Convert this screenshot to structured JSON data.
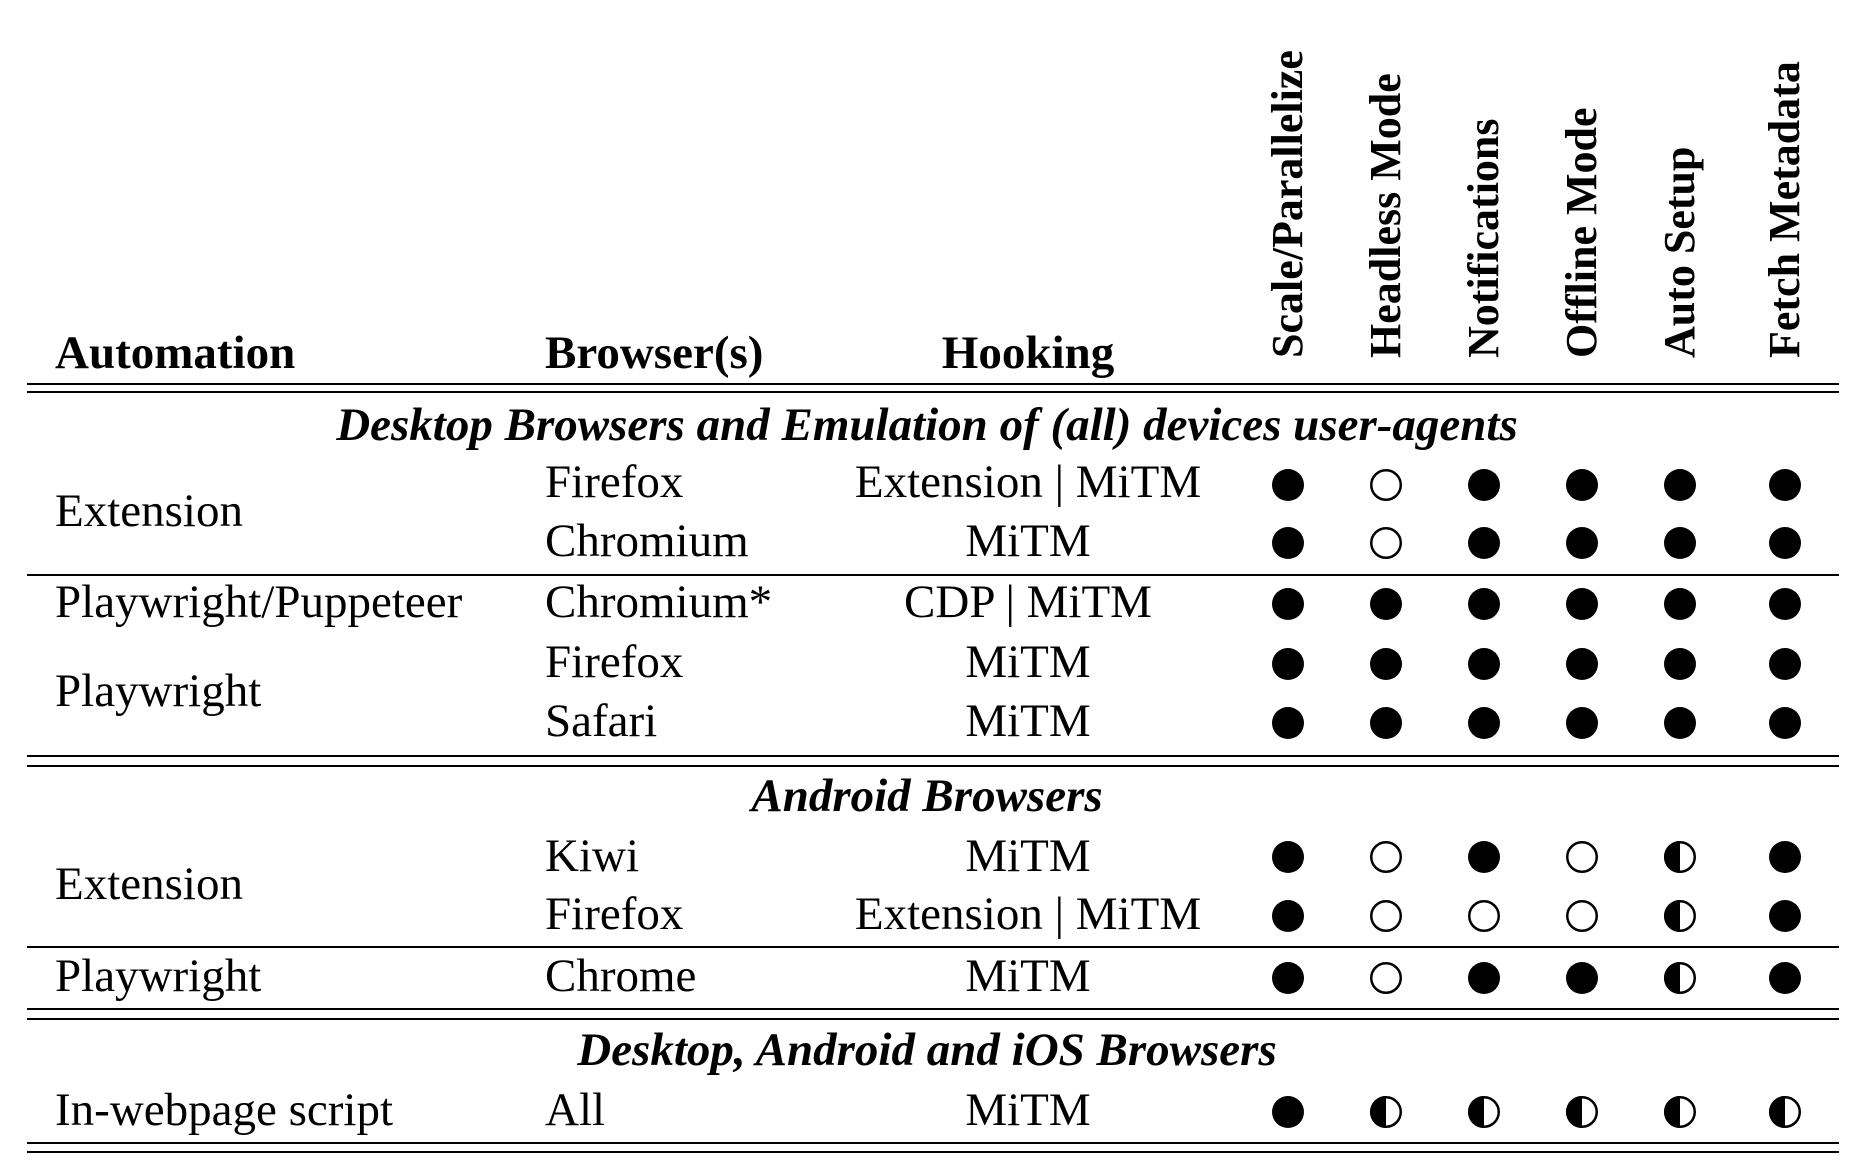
{
  "table": {
    "columns": {
      "automation": "Automation",
      "browsers": "Browser(s)",
      "hooking": "Hooking",
      "features": [
        "Scale/Parallelize",
        "Headless Mode",
        "Notifications",
        "Offline Mode",
        "Auto Setup",
        "Fetch Metadata"
      ]
    },
    "legend_symbols": {
      "full": "●",
      "none": "○",
      "partial": "◐"
    },
    "sections": [
      {
        "title": "Desktop Browsers and Emulation of (all) devices user-agents",
        "groups": [
          {
            "automation": "Extension",
            "rows": [
              {
                "browser": "Firefox",
                "hooking": "Extension | MiTM",
                "features": [
                  "full",
                  "none",
                  "full",
                  "full",
                  "full",
                  "full"
                ]
              },
              {
                "browser": "Chromium",
                "hooking": "MiTM",
                "features": [
                  "full",
                  "none",
                  "full",
                  "full",
                  "full",
                  "full"
                ]
              }
            ]
          },
          {
            "automation": "Playwright/Puppeteer",
            "rows": [
              {
                "browser": "Chromium*",
                "hooking": "CDP | MiTM",
                "features": [
                  "full",
                  "full",
                  "full",
                  "full",
                  "full",
                  "full"
                ]
              }
            ]
          },
          {
            "automation": "Playwright",
            "rows": [
              {
                "browser": "Firefox",
                "hooking": "MiTM",
                "features": [
                  "full",
                  "full",
                  "full",
                  "full",
                  "full",
                  "full"
                ]
              },
              {
                "browser": "Safari",
                "hooking": "MiTM",
                "features": [
                  "full",
                  "full",
                  "full",
                  "full",
                  "full",
                  "full"
                ]
              }
            ]
          }
        ]
      },
      {
        "title": "Android Browsers",
        "groups": [
          {
            "automation": "Extension",
            "rows": [
              {
                "browser": "Kiwi",
                "hooking": "MiTM",
                "features": [
                  "full",
                  "none",
                  "full",
                  "none",
                  "partial",
                  "full"
                ]
              },
              {
                "browser": "Firefox",
                "hooking": "Extension | MiTM",
                "features": [
                  "full",
                  "none",
                  "none",
                  "none",
                  "partial",
                  "full"
                ]
              }
            ]
          },
          {
            "automation": "Playwright",
            "rows": [
              {
                "browser": "Chrome",
                "hooking": "MiTM",
                "features": [
                  "full",
                  "none",
                  "full",
                  "full",
                  "partial",
                  "full"
                ]
              }
            ]
          }
        ]
      },
      {
        "title": "Desktop, Android and iOS Browsers",
        "groups": [
          {
            "automation": "In-webpage script",
            "rows": [
              {
                "browser": "All",
                "hooking": "MiTM",
                "features": [
                  "full",
                  "partial",
                  "partial",
                  "partial",
                  "partial",
                  "partial"
                ]
              }
            ]
          }
        ]
      }
    ]
  }
}
